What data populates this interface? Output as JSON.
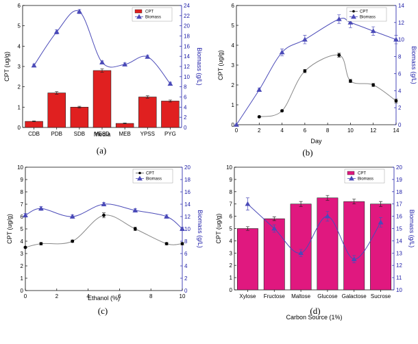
{
  "chart_data": [
    {
      "id": "a",
      "type": "bar",
      "caption": "(a)",
      "xlabel": "Media",
      "ylabel": "CPT (ug/g)",
      "ylabel_right": "Biomass (g/L)",
      "ylim": [
        0,
        6
      ],
      "ylim_right": [
        0,
        24
      ],
      "yticks": [
        "0",
        "1",
        "2",
        "3",
        "4",
        "5",
        "6"
      ],
      "yticks_right": [
        "0",
        "2",
        "4",
        "6",
        "8",
        "10",
        "12",
        "14",
        "16",
        "18",
        "20",
        "22",
        "24"
      ],
      "categories": [
        "CDB",
        "PDB",
        "SDB",
        "YESD",
        "MEB",
        "YPSS",
        "PYG"
      ],
      "series": [
        {
          "name": "CPT",
          "kind": "bar",
          "axis": "left",
          "color": "#e02020",
          "values": [
            0.3,
            1.7,
            1.0,
            2.8,
            0.2,
            1.5,
            1.3
          ],
          "errors": [
            0.02,
            0.06,
            0.04,
            0.08,
            0.02,
            0.06,
            0.05
          ]
        },
        {
          "name": "Biomass",
          "kind": "line",
          "axis": "right",
          "color": "#4a4ab8",
          "values": [
            12.2,
            18.8,
            22.8,
            12.8,
            12.4,
            13.9,
            8.6
          ],
          "errors": [
            0.3,
            0.4,
            0.4,
            0.3,
            0.3,
            0.3,
            0.3
          ]
        }
      ],
      "legend": [
        "CPT",
        "Biomass"
      ]
    },
    {
      "id": "b",
      "type": "scatter",
      "caption": "(b)",
      "xlabel": "Day",
      "ylabel": "CPT (ug/g)",
      "ylabel_right": "Biomass (g/L)",
      "xlim": [
        0,
        14
      ],
      "ylim": [
        0,
        6
      ],
      "ylim_right": [
        0,
        14
      ],
      "xticks": [
        "0",
        "2",
        "4",
        "6",
        "8",
        "10",
        "12",
        "14"
      ],
      "yticks": [
        "0",
        "1",
        "2",
        "3",
        "4",
        "5",
        "6"
      ],
      "yticks_right": [
        "0",
        "2",
        "4",
        "6",
        "8",
        "10",
        "12",
        "14"
      ],
      "series": [
        {
          "name": "CPT",
          "axis": "left",
          "color": "#555555",
          "x": [
            2,
            4,
            6,
            9,
            10,
            12,
            14
          ],
          "values": [
            0.4,
            0.7,
            2.7,
            3.5,
            2.2,
            2.0,
            1.2
          ],
          "errors": [
            0.04,
            0.04,
            0.08,
            0.1,
            0.08,
            0.08,
            0.1
          ]
        },
        {
          "name": "Biomass",
          "axis": "right",
          "color": "#4a4ab8",
          "x": [
            0,
            2,
            4,
            6,
            9,
            10,
            12,
            14
          ],
          "values": [
            0,
            4.1,
            8.5,
            10.0,
            12.4,
            12.0,
            11.0,
            10.0
          ],
          "errors": [
            0,
            0.2,
            0.4,
            0.5,
            0.5,
            0.6,
            0.5,
            0.5
          ]
        }
      ],
      "legend": [
        "CPT",
        "Biomass"
      ]
    },
    {
      "id": "c",
      "type": "scatter",
      "caption": "(c)",
      "xlabel": "Ethanol (%)",
      "ylabel": "CPT (ug/g)",
      "ylabel_right": "Biomass (g/L)",
      "xlim": [
        0,
        10
      ],
      "ylim": [
        0,
        10
      ],
      "ylim_right": [
        0,
        20
      ],
      "xticks": [
        "0",
        "2",
        "4",
        "6",
        "8",
        "10"
      ],
      "yticks": [
        "0",
        "1",
        "2",
        "3",
        "4",
        "5",
        "6",
        "7",
        "8",
        "9",
        "10"
      ],
      "yticks_right": [
        "0",
        "2",
        "4",
        "6",
        "8",
        "10",
        "12",
        "14",
        "16",
        "18",
        "20"
      ],
      "series": [
        {
          "name": "CPT",
          "axis": "left",
          "color": "#555555",
          "x": [
            0,
            1,
            3,
            5,
            7,
            9,
            10
          ],
          "values": [
            3.5,
            3.8,
            4.0,
            6.1,
            5.0,
            3.8,
            3.8
          ],
          "errors": [
            0.05,
            0.1,
            0.1,
            0.2,
            0.15,
            0.1,
            0.1
          ]
        },
        {
          "name": "Biomass",
          "axis": "right",
          "color": "#4a4ab8",
          "x": [
            0,
            1,
            3,
            5,
            7,
            9,
            10
          ],
          "values": [
            12.2,
            13.3,
            12.0,
            14.0,
            13.0,
            12.0,
            10.0
          ],
          "errors": [
            0.3,
            0.3,
            0.3,
            0.3,
            0.3,
            0.3,
            0.3
          ]
        }
      ],
      "legend": [
        "CPT",
        "Biomass"
      ]
    },
    {
      "id": "d",
      "type": "bar",
      "caption": "(d)",
      "xlabel": "Carbon Source (1%)",
      "ylabel": "CPT (ug/g)",
      "ylabel_right": "Biomass (g/L)",
      "ylim": [
        0,
        10
      ],
      "ylim_right": [
        10,
        20
      ],
      "yticks": [
        "0",
        "1",
        "2",
        "3",
        "4",
        "5",
        "6",
        "7",
        "8",
        "9",
        "10"
      ],
      "yticks_right": [
        "10",
        "11",
        "12",
        "13",
        "14",
        "15",
        "16",
        "17",
        "18",
        "19",
        "20"
      ],
      "categories": [
        "Xylose",
        "Fructose",
        "Maltose",
        "Glucose",
        "Galactose",
        "Sucrose"
      ],
      "series": [
        {
          "name": "CPT",
          "kind": "bar",
          "axis": "left",
          "color": "#e0187f",
          "values": [
            5.0,
            5.8,
            7.0,
            7.5,
            7.2,
            7.0
          ],
          "errors": [
            0.15,
            0.15,
            0.2,
            0.2,
            0.2,
            0.2
          ]
        },
        {
          "name": "Biomass",
          "kind": "line",
          "axis": "right",
          "color": "#4a4ab8",
          "values": [
            17.0,
            15.0,
            13.0,
            16.0,
            12.5,
            15.5
          ],
          "errors": [
            0.5,
            0.3,
            0.3,
            0.4,
            0.3,
            0.4
          ]
        }
      ],
      "legend": [
        "CPT",
        "Biomass"
      ]
    }
  ]
}
